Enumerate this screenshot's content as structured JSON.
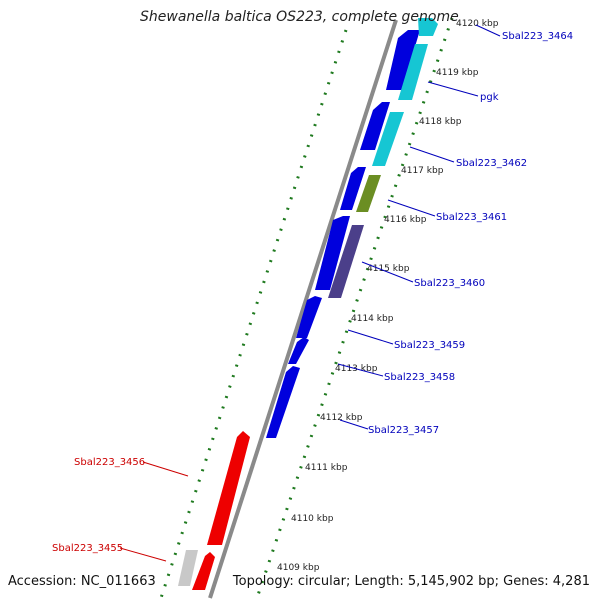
{
  "map": {
    "title": "Shewanella baltica OS223, complete genome",
    "accession": "Accession: NC_011663",
    "summary": "Topology: circular; Length: 5,145,902 bp; Genes: 4,281",
    "colors": {
      "backbone": "#8a8a8a",
      "tick": "#1f7a1f",
      "forward_gene": "#0000dd",
      "cyan_gene": "#16c6d3",
      "olive_gene": "#6b8e23",
      "purple_gene": "#4b3f8a",
      "reverse_gene": "#ee0000",
      "grey_gene": "#c8c8c8",
      "label_blue": "#0000bb",
      "label_red": "#cc0000"
    },
    "kbp_labels": [
      "4120 kbp",
      "4119 kbp",
      "4118 kbp",
      "4117 kbp",
      "4116 kbp",
      "4115 kbp",
      "4114 kbp",
      "4113 kbp",
      "4112 kbp",
      "4111 kbp",
      "4110 kbp",
      "4109 kbp"
    ],
    "gene_labels": [
      {
        "text": "Sbal223_3464",
        "color": "blue"
      },
      {
        "text": "pgk",
        "color": "blue"
      },
      {
        "text": "Sbal223_3462",
        "color": "blue"
      },
      {
        "text": "Sbal223_3461",
        "color": "blue"
      },
      {
        "text": "Sbal223_3460",
        "color": "blue"
      },
      {
        "text": "Sbal223_3459",
        "color": "blue"
      },
      {
        "text": "Sbal223_3458",
        "color": "blue"
      },
      {
        "text": "Sbal223_3457",
        "color": "blue"
      },
      {
        "text": "Sbal223_3456",
        "color": "red"
      },
      {
        "text": "Sbal223_3455",
        "color": "red"
      }
    ]
  }
}
